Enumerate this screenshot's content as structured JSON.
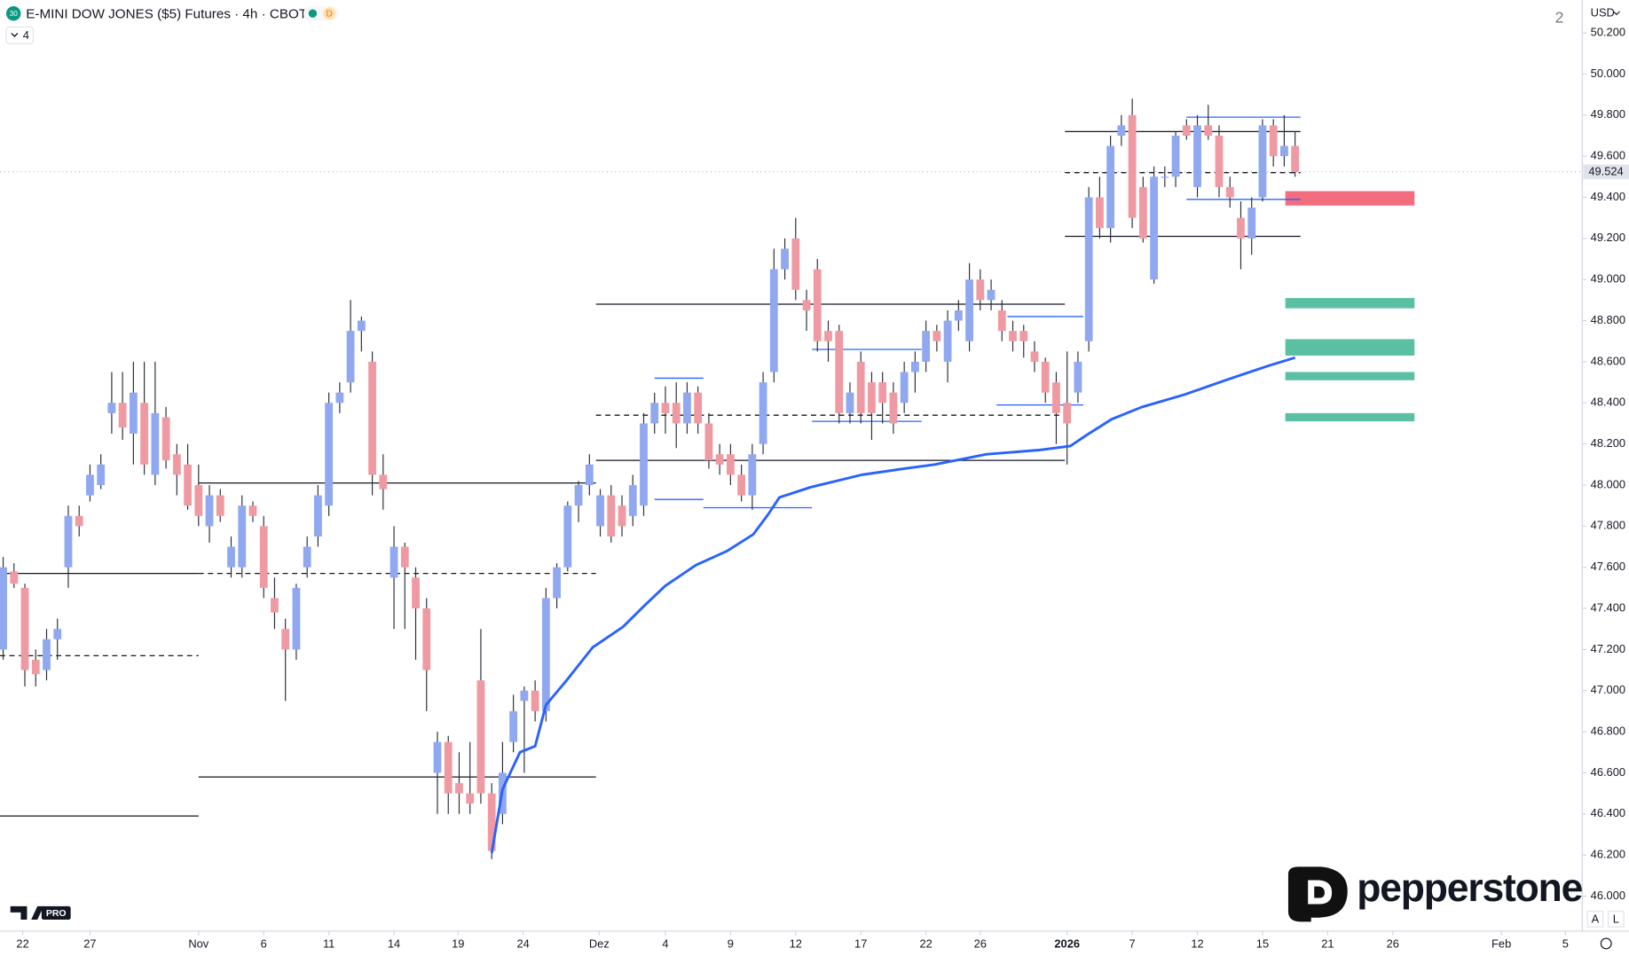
{
  "header": {
    "badge": "30",
    "title": "E-MINI DOW JONES ($5) Futures · 4h · CBOT",
    "flag": "D",
    "indicator_count": "4",
    "layout_count": "2",
    "currency": "USD",
    "auto": "A",
    "log": "L",
    "tv_badge": "PRO",
    "brand": "pepperstone"
  },
  "chart_data": {
    "type": "candlestick",
    "up_color": "#8fa8f0",
    "down_color": "#ef9aa3",
    "xlim": [
      -0.29,
      145.45
    ],
    "xticks": [
      {
        "value": 1.8,
        "label": "22"
      },
      {
        "value": 8.0,
        "label": "27"
      },
      {
        "value": 18.0,
        "label": "Nov"
      },
      {
        "value": 24.0,
        "label": "6"
      },
      {
        "value": 30.0,
        "label": "11"
      },
      {
        "value": 36.0,
        "label": "14"
      },
      {
        "value": 41.9,
        "label": "19"
      },
      {
        "value": 47.9,
        "label": "24"
      },
      {
        "value": 54.9,
        "label": "Dez"
      },
      {
        "value": 61.0,
        "label": "4"
      },
      {
        "value": 67.0,
        "label": "9"
      },
      {
        "value": 73.0,
        "label": "12"
      },
      {
        "value": 79.0,
        "label": "17"
      },
      {
        "value": 85.0,
        "label": "22"
      },
      {
        "value": 90.0,
        "label": "26"
      },
      {
        "value": 98.0,
        "label": "2026"
      },
      {
        "value": 104.0,
        "label": "7"
      },
      {
        "value": 110.0,
        "label": "12"
      },
      {
        "value": 116.0,
        "label": "15"
      },
      {
        "value": 122.0,
        "label": "21"
      },
      {
        "value": 128.0,
        "label": "26"
      },
      {
        "value": 138.0,
        "label": "Feb"
      },
      {
        "value": 143.9,
        "label": "5"
      }
    ],
    "ylim": [
      45.83,
      50.36
    ],
    "yticks": [
      {
        "value": 46.0,
        "label": "46.000"
      },
      {
        "value": 46.2,
        "label": "46.200"
      },
      {
        "value": 46.4,
        "label": "46.400"
      },
      {
        "value": 46.6,
        "label": "46.600"
      },
      {
        "value": 46.8,
        "label": "46.800"
      },
      {
        "value": 47.0,
        "label": "47.000"
      },
      {
        "value": 47.2,
        "label": "47.200"
      },
      {
        "value": 47.4,
        "label": "47.400"
      },
      {
        "value": 47.6,
        "label": "47.600"
      },
      {
        "value": 47.8,
        "label": "47.800"
      },
      {
        "value": 48.0,
        "label": "48.000"
      },
      {
        "value": 48.2,
        "label": "48.200"
      },
      {
        "value": 48.4,
        "label": "48.400"
      },
      {
        "value": 48.6,
        "label": "48.600"
      },
      {
        "value": 48.8,
        "label": "48.800"
      },
      {
        "value": 49.0,
        "label": "49.000"
      },
      {
        "value": 49.2,
        "label": "49.200"
      },
      {
        "value": 49.4,
        "label": "49.400"
      },
      {
        "value": 49.6,
        "label": "49.600"
      },
      {
        "value": 49.8,
        "label": "49.800"
      },
      {
        "value": 50.0,
        "label": "50.000"
      },
      {
        "value": 50.2,
        "label": "50.200"
      }
    ],
    "last_price": 49.524,
    "ohlc": [
      [
        47.2,
        47.65,
        47.15,
        47.6
      ],
      [
        47.58,
        47.62,
        47.5,
        47.52
      ],
      [
        47.5,
        47.52,
        47.02,
        47.1
      ],
      [
        47.15,
        47.2,
        47.02,
        47.08
      ],
      [
        47.1,
        47.3,
        47.05,
        47.25
      ],
      [
        47.25,
        47.35,
        47.15,
        47.3
      ],
      [
        47.6,
        47.9,
        47.5,
        47.85
      ],
      [
        47.85,
        47.9,
        47.75,
        47.8
      ],
      [
        47.95,
        48.1,
        47.92,
        48.05
      ],
      [
        48.0,
        48.15,
        47.98,
        48.1
      ],
      [
        48.35,
        48.55,
        48.25,
        48.4
      ],
      [
        48.4,
        48.55,
        48.22,
        48.28
      ],
      [
        48.25,
        48.6,
        48.1,
        48.45
      ],
      [
        48.4,
        48.6,
        48.05,
        48.1
      ],
      [
        48.05,
        48.6,
        48.0,
        48.35
      ],
      [
        48.33,
        48.38,
        48.08,
        48.12
      ],
      [
        48.15,
        48.2,
        47.95,
        48.05
      ],
      [
        48.1,
        48.2,
        47.88,
        47.9
      ],
      [
        48.0,
        48.1,
        47.8,
        47.85
      ],
      [
        47.8,
        48.0,
        47.72,
        47.95
      ],
      [
        47.95,
        47.98,
        47.82,
        47.85
      ],
      [
        47.6,
        47.75,
        47.55,
        47.7
      ],
      [
        47.6,
        47.95,
        47.55,
        47.9
      ],
      [
        47.9,
        47.92,
        47.82,
        47.85
      ],
      [
        47.8,
        47.85,
        47.45,
        47.5
      ],
      [
        47.45,
        47.55,
        47.3,
        47.38
      ],
      [
        47.3,
        47.35,
        46.95,
        47.2
      ],
      [
        47.2,
        47.52,
        47.15,
        47.5
      ],
      [
        47.6,
        47.75,
        47.55,
        47.7
      ],
      [
        47.75,
        48.0,
        47.7,
        47.95
      ],
      [
        47.9,
        48.45,
        47.85,
        48.4
      ],
      [
        48.4,
        48.5,
        48.35,
        48.45
      ],
      [
        48.5,
        48.9,
        48.45,
        48.75
      ],
      [
        48.75,
        48.82,
        48.65,
        48.8
      ],
      [
        48.6,
        48.65,
        47.95,
        48.05
      ],
      [
        48.05,
        48.15,
        47.88,
        47.98
      ],
      [
        47.55,
        47.8,
        47.3,
        47.7
      ],
      [
        47.7,
        47.72,
        47.3,
        47.6
      ],
      [
        47.55,
        47.6,
        47.15,
        47.4
      ],
      [
        47.4,
        47.45,
        46.9,
        47.1
      ],
      [
        46.6,
        46.8,
        46.4,
        46.75
      ],
      [
        46.75,
        46.78,
        46.4,
        46.5
      ],
      [
        46.55,
        46.7,
        46.4,
        46.5
      ],
      [
        46.5,
        46.75,
        46.4,
        46.45
      ],
      [
        47.05,
        47.3,
        46.45,
        46.5
      ],
      [
        46.5,
        46.55,
        46.18,
        46.22
      ],
      [
        46.4,
        46.75,
        46.35,
        46.6
      ],
      [
        46.75,
        46.98,
        46.7,
        46.9
      ],
      [
        46.95,
        47.02,
        46.6,
        47.0
      ],
      [
        47.0,
        47.05,
        46.85,
        46.9
      ],
      [
        46.9,
        47.5,
        46.85,
        47.45
      ],
      [
        47.45,
        47.62,
        47.4,
        47.6
      ],
      [
        47.6,
        47.92,
        47.58,
        47.9
      ],
      [
        47.9,
        48.02,
        47.82,
        48.0
      ],
      [
        48.0,
        48.15,
        47.95,
        48.1
      ],
      [
        47.8,
        47.98,
        47.75,
        47.95
      ],
      [
        47.95,
        48.0,
        47.72,
        47.75
      ],
      [
        47.9,
        47.95,
        47.75,
        47.8
      ],
      [
        47.85,
        48.05,
        47.8,
        48.0
      ],
      [
        47.9,
        48.35,
        47.85,
        48.3
      ],
      [
        48.3,
        48.45,
        48.25,
        48.4
      ],
      [
        48.4,
        48.48,
        48.25,
        48.35
      ],
      [
        48.4,
        48.5,
        48.18,
        48.3
      ],
      [
        48.3,
        48.5,
        48.25,
        48.45
      ],
      [
        48.45,
        48.48,
        48.25,
        48.3
      ],
      [
        48.3,
        48.35,
        48.08,
        48.12
      ],
      [
        48.15,
        48.2,
        48.05,
        48.1
      ],
      [
        48.15,
        48.2,
        48.0,
        48.05
      ],
      [
        48.05,
        48.1,
        47.92,
        47.95
      ],
      [
        47.95,
        48.2,
        47.88,
        48.15
      ],
      [
        48.2,
        48.55,
        48.15,
        48.5
      ],
      [
        48.55,
        49.15,
        48.5,
        49.05
      ],
      [
        49.05,
        49.2,
        49.0,
        49.15
      ],
      [
        49.2,
        49.3,
        48.9,
        48.95
      ],
      [
        48.9,
        48.95,
        48.75,
        48.85
      ],
      [
        49.05,
        49.1,
        48.65,
        48.7
      ],
      [
        48.75,
        48.8,
        48.6,
        48.7
      ],
      [
        48.75,
        48.78,
        48.3,
        48.35
      ],
      [
        48.35,
        48.5,
        48.3,
        48.45
      ],
      [
        48.6,
        48.65,
        48.3,
        48.35
      ],
      [
        48.5,
        48.55,
        48.22,
        48.35
      ],
      [
        48.5,
        48.55,
        48.3,
        48.4
      ],
      [
        48.45,
        48.5,
        48.25,
        48.3
      ],
      [
        48.4,
        48.6,
        48.35,
        48.55
      ],
      [
        48.55,
        48.65,
        48.45,
        48.6
      ],
      [
        48.6,
        48.8,
        48.55,
        48.75
      ],
      [
        48.75,
        48.78,
        48.65,
        48.7
      ],
      [
        48.6,
        48.85,
        48.5,
        48.8
      ],
      [
        48.8,
        48.9,
        48.75,
        48.85
      ],
      [
        48.7,
        49.08,
        48.65,
        49.0
      ],
      [
        49.0,
        49.05,
        48.85,
        48.9
      ],
      [
        48.9,
        49.0,
        48.85,
        48.95
      ],
      [
        48.85,
        48.9,
        48.7,
        48.75
      ],
      [
        48.75,
        48.8,
        48.65,
        48.7
      ],
      [
        48.75,
        48.78,
        48.62,
        48.7
      ],
      [
        48.65,
        48.7,
        48.55,
        48.6
      ],
      [
        48.6,
        48.62,
        48.4,
        48.45
      ],
      [
        48.5,
        48.55,
        48.2,
        48.35
      ],
      [
        48.4,
        48.65,
        48.1,
        48.3
      ],
      [
        48.45,
        48.65,
        48.4,
        48.6
      ],
      [
        48.7,
        49.45,
        48.65,
        49.4
      ],
      [
        49.4,
        49.5,
        49.2,
        49.25
      ],
      [
        49.25,
        49.7,
        49.18,
        49.65
      ],
      [
        49.7,
        49.8,
        49.65,
        49.75
      ],
      [
        49.8,
        49.88,
        49.25,
        49.3
      ],
      [
        49.45,
        49.5,
        49.18,
        49.2
      ],
      [
        49.0,
        49.55,
        48.98,
        49.5
      ],
      [
        49.5,
        49.55,
        49.45,
        49.5
      ],
      [
        49.5,
        49.72,
        49.45,
        49.7
      ],
      [
        49.75,
        49.78,
        49.68,
        49.7
      ],
      [
        49.45,
        49.8,
        49.4,
        49.75
      ],
      [
        49.75,
        49.85,
        49.68,
        49.7
      ],
      [
        49.7,
        49.75,
        49.4,
        49.45
      ],
      [
        49.45,
        49.5,
        49.35,
        49.4
      ],
      [
        49.3,
        49.38,
        49.05,
        49.2
      ],
      [
        49.2,
        49.4,
        49.12,
        49.35
      ],
      [
        49.4,
        49.78,
        49.38,
        49.75
      ],
      [
        49.75,
        49.78,
        49.55,
        49.6
      ],
      [
        49.6,
        49.8,
        49.55,
        49.65
      ],
      [
        49.65,
        49.72,
        49.5,
        49.524
      ]
    ],
    "series": [
      {
        "color": "#2962ff",
        "width": 2.5,
        "x": [
          45.0,
          46.0,
          47.6,
          49.0,
          50.0,
          51.9,
          54.3,
          57.1,
          59.0,
          61.0,
          63.8,
          66.7,
          69.1,
          70.5,
          71.5,
          74.4,
          79.1,
          83.0,
          85.8,
          90.6,
          95.4,
          98.3,
          99.7,
          102.1,
          104.9,
          108.8,
          112.6,
          116.5,
          119.0
        ],
        "values": [
          46.21,
          46.52,
          46.7,
          46.73,
          46.93,
          47.05,
          47.21,
          47.31,
          47.41,
          47.51,
          47.61,
          47.68,
          47.76,
          47.86,
          47.94,
          47.99,
          48.05,
          48.08,
          48.1,
          48.15,
          48.17,
          48.19,
          48.24,
          48.32,
          48.38,
          48.44,
          48.51,
          48.58,
          48.62
        ]
      }
    ],
    "levels": [
      {
        "value": 47.57,
        "x": [
          -0.29,
          18.0
        ],
        "color": "#131722",
        "dashed": false
      },
      {
        "value": 47.17,
        "x": [
          -0.29,
          18.0
        ],
        "color": "#131722",
        "dashed": true
      },
      {
        "value": 46.39,
        "x": [
          -0.29,
          18.0
        ],
        "color": "#131722",
        "dashed": false
      },
      {
        "value": 48.01,
        "x": [
          18.0,
          54.6
        ],
        "color": "#131722",
        "dashed": false
      },
      {
        "value": 47.57,
        "x": [
          18.0,
          54.6
        ],
        "color": "#131722",
        "dashed": true
      },
      {
        "value": 46.58,
        "x": [
          18.0,
          54.6
        ],
        "color": "#131722",
        "dashed": false
      },
      {
        "value": 48.88,
        "x": [
          54.6,
          97.8
        ],
        "color": "#131722",
        "dashed": false
      },
      {
        "value": 48.34,
        "x": [
          54.6,
          97.8
        ],
        "color": "#131722",
        "dashed": true
      },
      {
        "value": 48.12,
        "x": [
          54.6,
          97.8
        ],
        "color": "#131722",
        "dashed": false
      },
      {
        "value": 49.72,
        "x": [
          97.8,
          119.5
        ],
        "color": "#131722",
        "dashed": false
      },
      {
        "value": 49.52,
        "x": [
          97.8,
          119.5
        ],
        "color": "#131722",
        "dashed": true
      },
      {
        "value": 49.21,
        "x": [
          97.8,
          119.5
        ],
        "color": "#131722",
        "dashed": false
      },
      {
        "value": 49.79,
        "x": [
          109.0,
          119.5
        ],
        "color": "#2962ff",
        "dashed": false
      },
      {
        "value": 49.39,
        "x": [
          109.0,
          119.5
        ],
        "color": "#2962ff",
        "dashed": false
      },
      {
        "value": 48.52,
        "x": [
          60.0,
          64.5
        ],
        "color": "#2962ff",
        "dashed": false
      },
      {
        "value": 47.93,
        "x": [
          60.0,
          64.5
        ],
        "color": "#2962ff",
        "dashed": false
      },
      {
        "value": 47.89,
        "x": [
          64.5,
          74.5
        ],
        "color": "#2962ff",
        "dashed": false
      },
      {
        "value": 48.66,
        "x": [
          74.5,
          84.6
        ],
        "color": "#2962ff",
        "dashed": false
      },
      {
        "value": 48.31,
        "x": [
          74.5,
          84.6
        ],
        "color": "#2962ff",
        "dashed": false
      },
      {
        "value": 48.82,
        "x": [
          92.5,
          99.5
        ],
        "color": "#2962ff",
        "dashed": false
      },
      {
        "value": 48.39,
        "x": [
          91.5,
          99.5
        ],
        "color": "#2962ff",
        "dashed": false
      }
    ],
    "zones": [
      {
        "ylim": [
          49.36,
          49.43
        ],
        "x": [
          118.1,
          130.0
        ],
        "color": "#f26d7d"
      },
      {
        "ylim": [
          48.86,
          48.91
        ],
        "x": [
          118.1,
          130.0
        ],
        "color": "#5bbfa3"
      },
      {
        "ylim": [
          48.63,
          48.71
        ],
        "x": [
          118.1,
          130.0
        ],
        "color": "#5bbfa3"
      },
      {
        "ylim": [
          48.51,
          48.55
        ],
        "x": [
          118.1,
          130.0
        ],
        "color": "#5bbfa3"
      },
      {
        "ylim": [
          48.31,
          48.35
        ],
        "x": [
          118.1,
          130.0
        ],
        "color": "#5bbfa3"
      }
    ]
  }
}
